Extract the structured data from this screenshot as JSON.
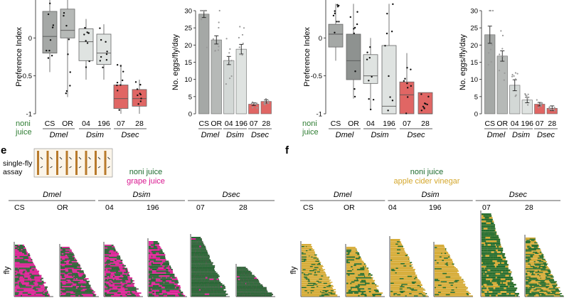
{
  "chart_data": [
    {
      "type": "box",
      "panel": "top-left",
      "ylabel": "Preference Index",
      "ylim": [
        -1,
        0.5
      ],
      "yticks": [
        "-1",
        "-0.5",
        "0"
      ],
      "groups": [
        {
          "label": "CS",
          "color": "#a5a8a6",
          "q1": -0.2,
          "median": 0.02,
          "q3": 0.35,
          "wlo": -0.45,
          "whi": 0.5
        },
        {
          "label": "OR",
          "color": "#b6b9b7",
          "q1": 0.0,
          "median": 0.1,
          "q3": 0.38,
          "wlo": -0.78,
          "whi": 0.5
        },
        {
          "label": "04",
          "color": "#dfe3e1",
          "q1": -0.3,
          "median": -0.05,
          "q3": 0.12,
          "wlo": -0.55,
          "whi": 0.25
        },
        {
          "label": "196",
          "color": "#dfe3e1",
          "q1": -0.35,
          "median": -0.2,
          "q3": 0.05,
          "wlo": -0.55,
          "whi": 0.18
        },
        {
          "label": "07",
          "color": "#e06664",
          "q1": -0.93,
          "median": -0.8,
          "q3": -0.62,
          "wlo": -1.0,
          "whi": -0.35
        },
        {
          "label": "28",
          "color": "#e06664",
          "q1": -0.9,
          "median": -0.8,
          "q3": -0.68,
          "wlo": -1.0,
          "whi": -0.55
        }
      ],
      "odor_label": [
        "noni",
        "juice"
      ],
      "species": [
        "Dmel",
        "Dsim",
        "Dsec"
      ]
    },
    {
      "type": "bar",
      "panel": "top-mid",
      "ylabel": "No. eggs/fly/day",
      "ylim": [
        0,
        30
      ],
      "yticks": [
        "0",
        "5",
        "10",
        "15",
        "20",
        "25",
        "30"
      ],
      "categories": [
        "CS",
        "OR",
        "04",
        "196",
        "07",
        "28"
      ],
      "values": [
        29,
        21.5,
        15.5,
        18.8,
        2.8,
        3.6
      ],
      "errors": [
        1.0,
        1.2,
        1.2,
        1.4,
        0.4,
        0.5
      ],
      "colors": [
        "#a5a8a6",
        "#b6b9b7",
        "#d3d8d6",
        "#dfe3e1",
        "#e06664",
        "#e06664"
      ],
      "species": [
        "Dmel",
        "Dsim",
        "Dsec"
      ]
    },
    {
      "type": "box",
      "panel": "top-right-a",
      "ylabel": "Preference Index",
      "ylim": [
        -1,
        0.5
      ],
      "yticks": [
        "-1",
        "-0.5",
        "0"
      ],
      "groups": [
        {
          "label": "CS",
          "color": "#a5a8a6",
          "q1": -0.12,
          "median": 0.05,
          "q3": 0.18,
          "wlo": -0.3,
          "whi": 0.45
        },
        {
          "label": "OR",
          "color": "#8e9290",
          "q1": -0.55,
          "median": -0.3,
          "q3": 0.05,
          "wlo": -0.8,
          "whi": 0.45
        },
        {
          "label": "04",
          "color": "#dfe3e1",
          "q1": -0.6,
          "median": -0.5,
          "q3": -0.22,
          "wlo": -0.95,
          "whi": 0.0
        },
        {
          "label": "196",
          "color": "#dfe3e1",
          "q1": -1.0,
          "median": -0.9,
          "q3": -0.1,
          "wlo": -1.0,
          "whi": 0.45
        },
        {
          "label": "07",
          "color": "#e06664",
          "q1": -1.0,
          "median": -0.75,
          "q3": -0.58,
          "wlo": -1.0,
          "whi": -0.2
        },
        {
          "label": "28",
          "color": "#e06664",
          "q1": -1.0,
          "median": -1.0,
          "q3": -0.72,
          "wlo": -1.0,
          "whi": -0.72
        }
      ],
      "odor_label": [
        "noni",
        "juice"
      ],
      "species": [
        "Dmel",
        "Dsim",
        "Dsec"
      ]
    },
    {
      "type": "bar",
      "panel": "top-right-b",
      "ylabel": "No. eggs/fly/day",
      "ylim": [
        0,
        30
      ],
      "yticks": [
        "0",
        "5",
        "10",
        "15",
        "20",
        "25",
        "30"
      ],
      "categories": [
        "CS",
        "OR",
        "04",
        "196",
        "07",
        "28"
      ],
      "values": [
        23,
        16.8,
        8.3,
        4.0,
        2.8,
        1.6
      ],
      "errors": [
        2.5,
        1.5,
        1.6,
        0.8,
        0.5,
        0.7
      ],
      "colors": [
        "#a5a8a6",
        "#b6b9b7",
        "#d3d8d6",
        "#dfe3e1",
        "#e06664",
        "#e06664"
      ],
      "species": [
        "Dmel",
        "Dsim",
        "Dsec"
      ]
    },
    {
      "type": "raster",
      "panel": "e",
      "panel_letter": "e",
      "assay_label": [
        "single-fly",
        "assay"
      ],
      "legend": [
        {
          "label": "noni juice",
          "color": "#1e6b2f"
        },
        {
          "label": "grape juice",
          "color": "#d9168f"
        }
      ],
      "species": [
        "Dmel",
        "Dsim",
        "Dsec"
      ],
      "strains": [
        "CS",
        "OR",
        "04",
        "196",
        "07",
        "28"
      ],
      "ylabel": "fly",
      "green": "#1e6b2f",
      "other": "#d9168f",
      "green_share": [
        0.35,
        0.55,
        0.45,
        0.5,
        0.97,
        0.97
      ],
      "rows": [
        36,
        38,
        38,
        34,
        40,
        22
      ]
    },
    {
      "type": "raster",
      "panel": "f",
      "panel_letter": "f",
      "legend": [
        {
          "label": "noni juice",
          "color": "#1e6b2f"
        },
        {
          "label": "apple cider vinegar",
          "color": "#d4a72c"
        }
      ],
      "species": [
        "Dmel",
        "Dsim",
        "Dsec"
      ],
      "strains": [
        "CS",
        "OR",
        "04",
        "196",
        "07",
        "28"
      ],
      "ylabel": "fly",
      "green": "#1e6b2f",
      "other": "#d4a72c",
      "green_share": [
        0.15,
        0.3,
        0.1,
        0.12,
        0.8,
        0.5
      ],
      "rows": [
        50,
        36,
        50,
        44,
        46,
        50
      ]
    }
  ]
}
